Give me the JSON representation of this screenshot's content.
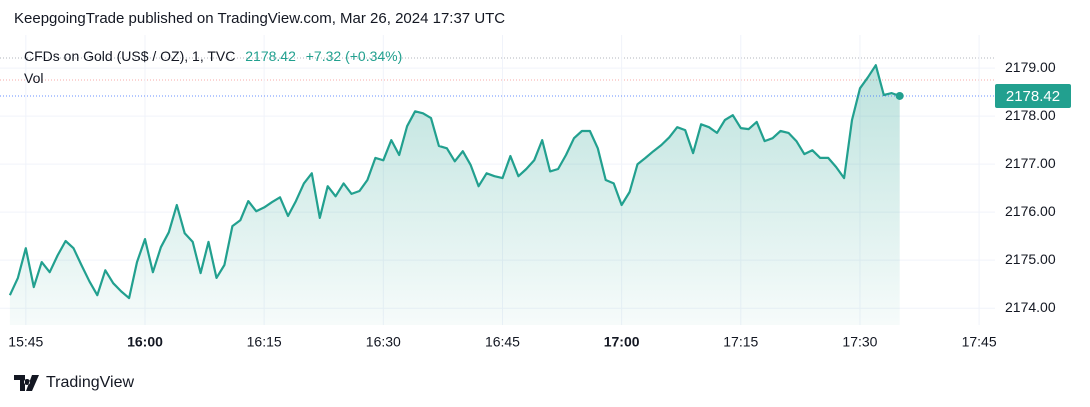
{
  "header": {
    "title": "KeepgoingTrade published on TradingView.com, Mar 26, 2024 17:37 UTC"
  },
  "chart_data": {
    "type": "area",
    "symbol": "CFDs on Gold (US$ / OZ), 1, TVC",
    "change": "+7.32 (+0.34%)",
    "volume_label": "Vol",
    "x": [
      "15:43",
      "15:44",
      "15:45",
      "15:46",
      "15:47",
      "15:48",
      "15:49",
      "15:50",
      "15:51",
      "15:52",
      "15:53",
      "15:54",
      "15:55",
      "15:56",
      "15:57",
      "15:58",
      "15:59",
      "16:00",
      "16:01",
      "16:02",
      "16:03",
      "16:04",
      "16:05",
      "16:06",
      "16:07",
      "16:08",
      "16:09",
      "16:10",
      "16:11",
      "16:12",
      "16:13",
      "16:14",
      "16:15",
      "16:16",
      "16:17",
      "16:18",
      "16:19",
      "16:20",
      "16:21",
      "16:22",
      "16:23",
      "16:24",
      "16:25",
      "16:26",
      "16:27",
      "16:28",
      "16:29",
      "16:30",
      "16:31",
      "16:32",
      "16:33",
      "16:34",
      "16:35",
      "16:36",
      "16:37",
      "16:38",
      "16:39",
      "16:40",
      "16:41",
      "16:42",
      "16:43",
      "16:44",
      "16:45",
      "16:46",
      "16:47",
      "16:48",
      "16:49",
      "16:50",
      "16:51",
      "16:52",
      "16:53",
      "16:54",
      "16:55",
      "16:56",
      "16:57",
      "16:58",
      "16:59",
      "17:00",
      "17:01",
      "17:02",
      "17:03",
      "17:04",
      "17:05",
      "17:06",
      "17:07",
      "17:08",
      "17:09",
      "17:10",
      "17:11",
      "17:12",
      "17:13",
      "17:14",
      "17:15",
      "17:16",
      "17:17",
      "17:18",
      "17:19",
      "17:20",
      "17:21",
      "17:22",
      "17:23",
      "17:24",
      "17:25",
      "17:26",
      "17:27",
      "17:28",
      "17:29",
      "17:30",
      "17:31",
      "17:32",
      "17:33",
      "17:34",
      "17:35"
    ],
    "series": [
      {
        "name": "CFDs on Gold",
        "color": "#22a08f",
        "values": [
          2174.27,
          2174.63,
          2175.25,
          2174.44,
          2174.96,
          2174.75,
          2175.1,
          2175.4,
          2175.25,
          2174.9,
          2174.56,
          2174.27,
          2174.79,
          2174.52,
          2174.35,
          2174.21,
          2174.96,
          2175.44,
          2174.75,
          2175.27,
          2175.58,
          2176.15,
          2175.56,
          2175.38,
          2174.73,
          2175.38,
          2174.63,
          2174.9,
          2175.71,
          2175.83,
          2176.23,
          2176.02,
          2176.1,
          2176.21,
          2176.31,
          2175.92,
          2176.23,
          2176.6,
          2176.81,
          2175.88,
          2176.54,
          2176.33,
          2176.6,
          2176.38,
          2176.44,
          2176.67,
          2177.13,
          2177.08,
          2177.5,
          2177.19,
          2177.79,
          2178.1,
          2178.06,
          2177.96,
          2177.38,
          2177.33,
          2177.06,
          2177.27,
          2176.98,
          2176.54,
          2176.81,
          2176.75,
          2176.71,
          2177.17,
          2176.75,
          2176.9,
          2177.08,
          2177.5,
          2176.85,
          2176.9,
          2177.19,
          2177.54,
          2177.69,
          2177.69,
          2177.33,
          2176.67,
          2176.6,
          2176.15,
          2176.42,
          2177.0,
          2177.13,
          2177.27,
          2177.4,
          2177.56,
          2177.77,
          2177.71,
          2177.23,
          2177.83,
          2177.77,
          2177.65,
          2177.92,
          2178.02,
          2177.75,
          2177.73,
          2177.88,
          2177.48,
          2177.54,
          2177.69,
          2177.65,
          2177.48,
          2177.21,
          2177.29,
          2177.13,
          2177.13,
          2176.94,
          2176.71,
          2177.92,
          2178.58,
          2178.81,
          2179.06,
          2178.44,
          2178.48,
          2178.42
        ]
      }
    ],
    "xlim": [
      "15:42",
      "17:47"
    ],
    "xticks": [
      "15:45",
      "16:00",
      "16:15",
      "16:30",
      "16:45",
      "17:00",
      "17:15",
      "17:30",
      "17:45"
    ],
    "ylim": [
      2173.65,
      2179.69
    ],
    "yticks": [
      {
        "value": 2174,
        "label": "2174.00"
      },
      {
        "value": 2175,
        "label": "2175.00"
      },
      {
        "value": 2176,
        "label": "2176.00"
      },
      {
        "value": 2177,
        "label": "2177.00"
      },
      {
        "value": 2178,
        "label": "2178.00"
      },
      {
        "value": 2179,
        "label": "2179.00"
      }
    ],
    "grid": true
  },
  "footer": {
    "brand": "TradingView"
  }
}
